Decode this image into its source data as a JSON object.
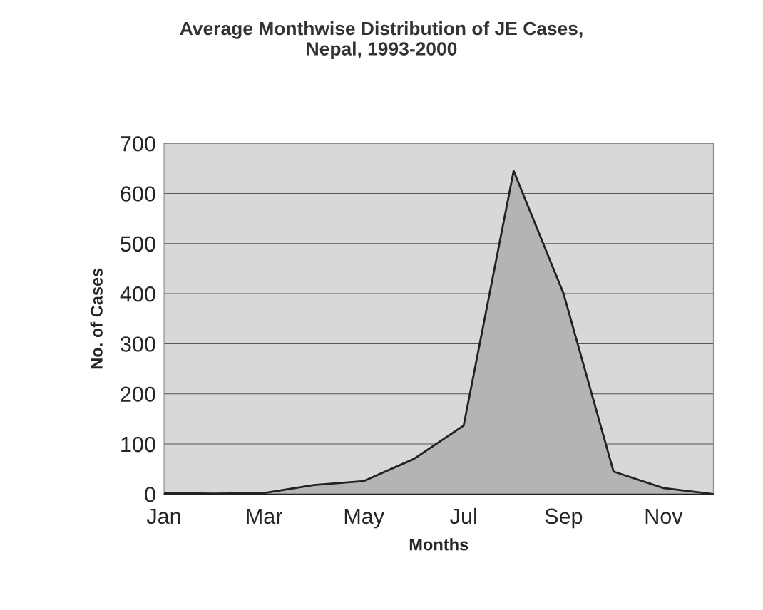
{
  "chart_data": {
    "type": "area",
    "title": "Average Monthwise Distribution of JE Cases,\nNepal, 1993-2000",
    "xlabel": "Months",
    "ylabel": "No. of Cases",
    "categories": [
      "Jan",
      null,
      "Mar",
      null,
      "May",
      null,
      "Jul",
      null,
      "Sep",
      null,
      "Nov",
      null
    ],
    "series": [
      {
        "color": "#b4b4b4",
        "values": [
          2,
          1,
          2,
          18,
          26,
          70,
          137,
          645,
          400,
          45,
          12,
          0
        ]
      }
    ],
    "ylim": [
      0,
      700
    ],
    "yticks": [
      0,
      100,
      200,
      300,
      400,
      500,
      600,
      700
    ],
    "grid": "y",
    "legend": false
  }
}
